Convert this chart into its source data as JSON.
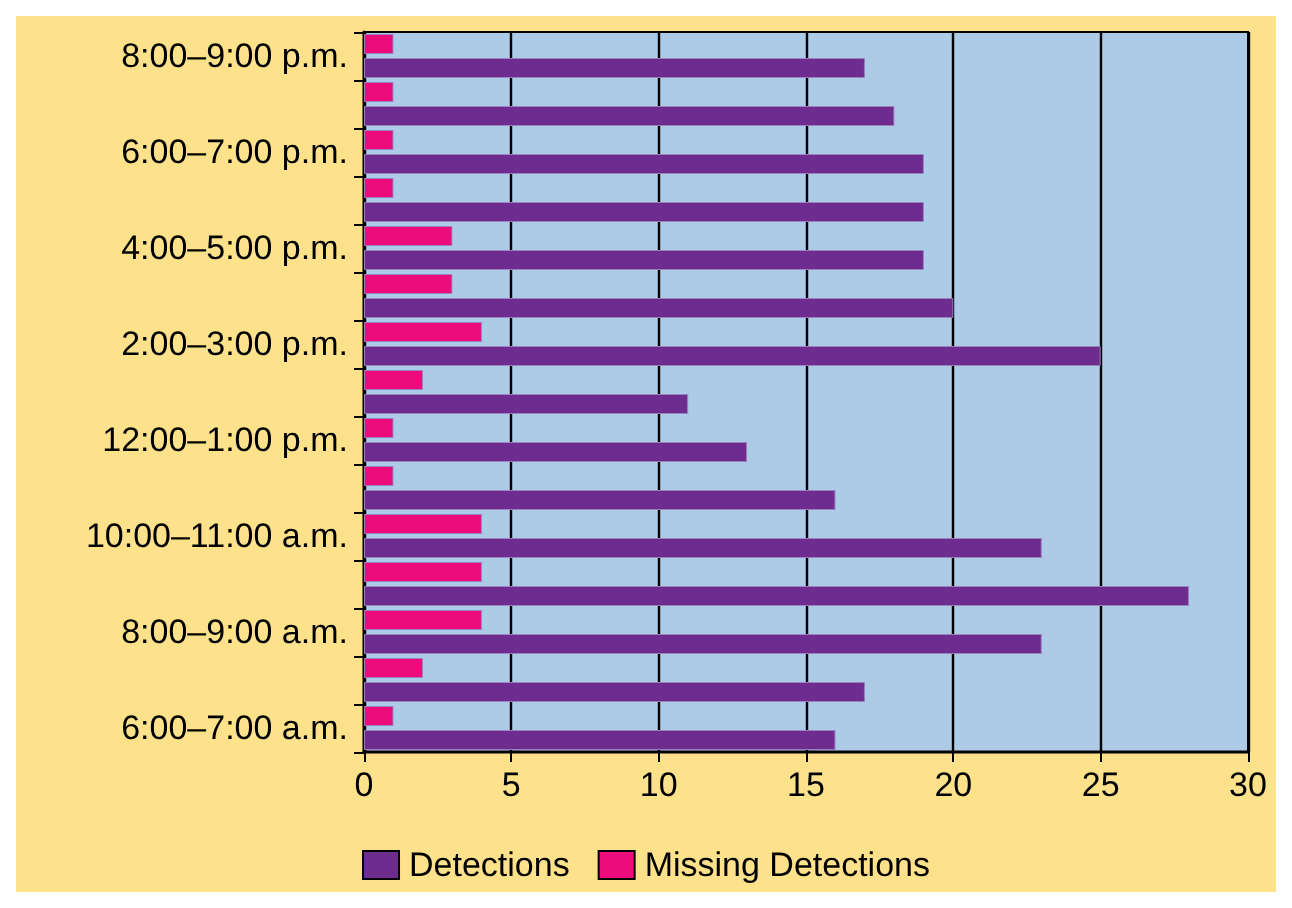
{
  "chart_data": {
    "type": "bar",
    "orientation": "horizontal",
    "categories": [
      "8:00–9:00 p.m.",
      null,
      "6:00–7:00 p.m.",
      null,
      "4:00–5:00 p.m.",
      null,
      "2:00–3:00 p.m.",
      null,
      "12:00–1:00 p.m.",
      null,
      "10:00–11:00 a.m.",
      null,
      "8:00–9:00 a.m.",
      null,
      "6:00–7:00 a.m."
    ],
    "series": [
      {
        "name": "Detections",
        "color": "#6f2c8f",
        "values": [
          17,
          18,
          19,
          19,
          19,
          20,
          25,
          11,
          13,
          16,
          23,
          28,
          23,
          17,
          16
        ]
      },
      {
        "name": "Missing Detections",
        "color": "#ec0c7c",
        "values": [
          1,
          1,
          1,
          1,
          3,
          3,
          4,
          2,
          1,
          1,
          4,
          4,
          4,
          2,
          1
        ]
      }
    ],
    "xlim": [
      0,
      30
    ],
    "xticks": [
      0,
      5,
      10,
      15,
      20,
      25,
      30
    ],
    "grid": "x",
    "legend": "bottom"
  }
}
